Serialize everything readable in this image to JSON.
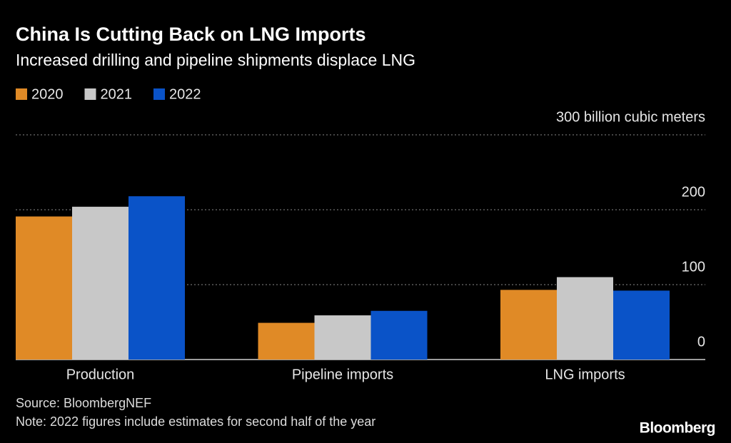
{
  "chart_data": {
    "type": "bar",
    "title": "China Is Cutting Back on LNG Imports",
    "subtitle": "Increased drilling and pipeline shipments displace LNG",
    "categories": [
      "Production",
      "Pipeline imports",
      "LNG imports"
    ],
    "series": [
      {
        "name": "2020",
        "color": "#e08a26",
        "values": [
          191,
          49,
          93
        ]
      },
      {
        "name": "2021",
        "color": "#c8c8c8",
        "values": [
          204,
          59,
          110
        ]
      },
      {
        "name": "2022",
        "color": "#0a53c8",
        "values": [
          218,
          65,
          92
        ]
      }
    ],
    "ylim": [
      0,
      300
    ],
    "yticks": [
      0,
      100,
      200,
      {
        "value": 300,
        "label": "300 billion cubic meters"
      }
    ],
    "grid": true,
    "legend": "top-left",
    "source": "Source: BloombergNEF",
    "note": "Note: 2022 figures include estimates for second half of the year",
    "logo": "Bloomberg"
  }
}
